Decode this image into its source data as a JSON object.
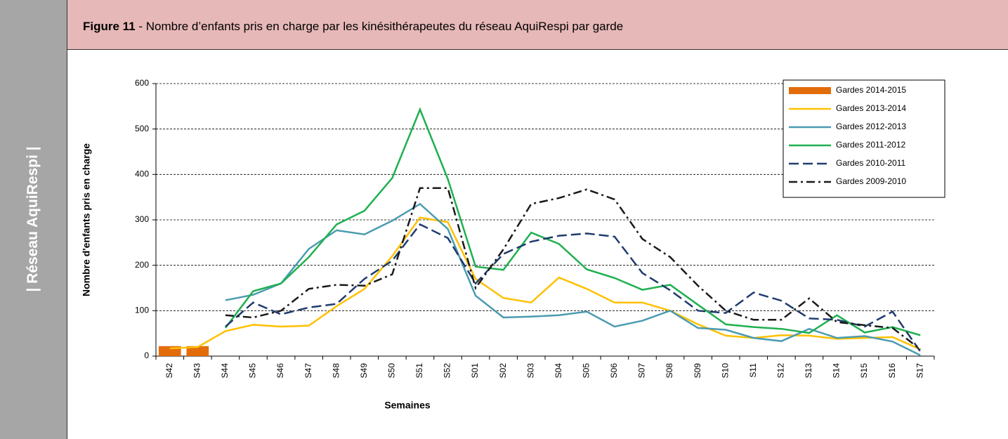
{
  "sidebar": "| Réseau AquiRespi |",
  "figure_label": "Figure 11",
  "chart_data": {
    "type": "line",
    "title": " - Nombre d’enfants pris en charge par les kinésithérapeutes du réseau AquiRespi par garde",
    "x_label": "Semaines",
    "y_label": "Nombre d'enfants  pris en charge",
    "categories": [
      "S42",
      "S43",
      "S44",
      "S45",
      "S46",
      "S47",
      "S48",
      "S49",
      "S50",
      "S51",
      "S52",
      "S01",
      "S02",
      "S03",
      "S04",
      "S05",
      "S06",
      "S07",
      "S08",
      "S09",
      "S10",
      "S11",
      "S12",
      "S13",
      "S14",
      "S15",
      "S16",
      "S17"
    ],
    "ylim": [
      0,
      600
    ],
    "yticks": [
      0,
      100,
      200,
      300,
      400,
      500,
      600
    ],
    "grid": true,
    "legend": "upper right",
    "series": [
      {
        "name": "Gardes 2014-2015",
        "type": "bar",
        "color": "#e36c0a",
        "values": [
          22,
          22,
          null,
          null,
          null,
          null,
          null,
          null,
          null,
          null,
          null,
          null,
          null,
          null,
          null,
          null,
          null,
          null,
          null,
          null,
          null,
          null,
          null,
          null,
          null,
          null,
          null,
          null
        ]
      },
      {
        "name": "Gardes 2013-2014",
        "color": "#ffc000",
        "dash": "solid",
        "values": [
          17,
          20,
          55,
          69,
          65,
          67,
          110,
          148,
          220,
          305,
          295,
          170,
          128,
          118,
          173,
          148,
          118,
          118,
          100,
          70,
          45,
          40,
          46,
          45,
          38,
          40,
          42,
          15
        ]
      },
      {
        "name": "Gardes 2012-2013",
        "color": "#4a9bb0",
        "dash": "solid",
        "values": [
          null,
          null,
          123,
          135,
          160,
          236,
          277,
          268,
          298,
          335,
          280,
          133,
          85,
          87,
          90,
          98,
          65,
          78,
          100,
          62,
          58,
          40,
          33,
          60,
          40,
          44,
          32,
          2
        ]
      },
      {
        "name": "Gardes 2011-2012",
        "color": "#1fb050",
        "dash": "solid",
        "values": [
          null,
          null,
          62,
          143,
          160,
          218,
          290,
          320,
          392,
          543,
          390,
          197,
          190,
          272,
          247,
          191,
          172,
          146,
          157,
          113,
          70,
          64,
          60,
          51,
          90,
          52,
          64,
          46
        ]
      },
      {
        "name": "Gardes 2010-2011",
        "color": "#1f3c6e",
        "dash": "dash",
        "values": [
          null,
          null,
          65,
          118,
          92,
          107,
          115,
          170,
          210,
          290,
          260,
          160,
          225,
          252,
          265,
          270,
          263,
          183,
          145,
          100,
          95,
          140,
          122,
          83,
          80,
          65,
          98,
          10
        ]
      },
      {
        "name": "Gardes 2009-2010",
        "color": "#1a1a1a",
        "dash": "dashdot",
        "values": [
          null,
          null,
          90,
          85,
          100,
          148,
          157,
          155,
          180,
          370,
          370,
          150,
          235,
          335,
          348,
          367,
          345,
          258,
          218,
          155,
          100,
          80,
          80,
          127,
          75,
          68,
          62,
          15
        ]
      }
    ]
  }
}
